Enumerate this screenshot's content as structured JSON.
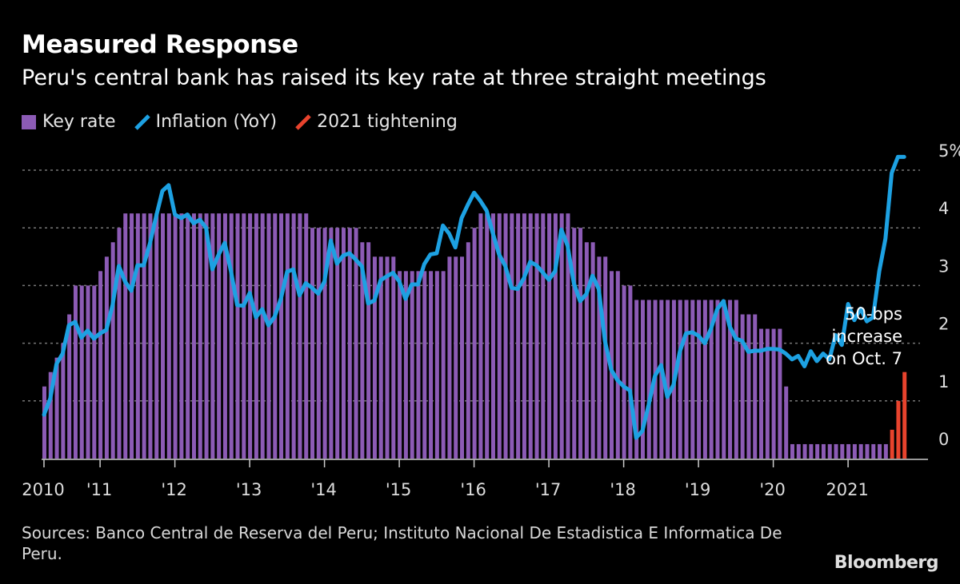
{
  "title": "Measured Response",
  "subtitle": "Peru's central bank has raised its key rate at three straight meetings",
  "legend": [
    {
      "label": "Key rate",
      "color": "#8c5bb5",
      "kind": "bar"
    },
    {
      "label": "Inflation (YoY)",
      "color": "#1da1e2",
      "kind": "line"
    },
    {
      "label": "2021 tightening",
      "color": "#e8432d",
      "kind": "bar"
    }
  ],
  "sources": "Sources: Banco Central de Reserva del Peru; Instituto Nacional De Estadistica E Informatica De Peru.",
  "logo": "Bloomberg",
  "chart_data": {
    "type": "bar+line",
    "frequency": "monthly",
    "x_start": "2010-04",
    "ylim": [
      0,
      5.5
    ],
    "y_ticks": [
      0,
      1,
      2,
      3,
      4,
      5
    ],
    "y_tick_labels": [
      "0",
      "1",
      "2",
      "3",
      "4",
      "5%"
    ],
    "x_ticks": [
      2010,
      2011,
      2012,
      2013,
      2014,
      2015,
      2016,
      2017,
      2018,
      2019,
      2020,
      2021
    ],
    "x_tick_labels": [
      "2010",
      "'11",
      "'12",
      "'13",
      "'14",
      "'15",
      "'16",
      "'17",
      "'18",
      "'19",
      "'20",
      "2021"
    ],
    "grid": "horizontal dashed",
    "legend_placement": "top-left",
    "series": [
      {
        "name": "Key rate",
        "type": "bar",
        "color": "#8c5bb5",
        "values": [
          1.25,
          1.5,
          1.75,
          2.0,
          2.5,
          3.0,
          3.0,
          3.0,
          3.0,
          3.25,
          3.5,
          3.75,
          4.0,
          4.25,
          4.25,
          4.25,
          4.25,
          4.25,
          4.25,
          4.25,
          4.25,
          4.25,
          4.25,
          4.25,
          4.25,
          4.25,
          4.25,
          4.25,
          4.25,
          4.25,
          4.25,
          4.25,
          4.25,
          4.25,
          4.25,
          4.25,
          4.25,
          4.25,
          4.25,
          4.25,
          4.25,
          4.25,
          4.25,
          4.0,
          4.0,
          4.0,
          4.0,
          4.0,
          4.0,
          4.0,
          4.0,
          3.75,
          3.75,
          3.5,
          3.5,
          3.5,
          3.5,
          3.25,
          3.25,
          3.25,
          3.25,
          3.25,
          3.25,
          3.25,
          3.25,
          3.5,
          3.5,
          3.5,
          3.75,
          4.0,
          4.25,
          4.25,
          4.25,
          4.25,
          4.25,
          4.25,
          4.25,
          4.25,
          4.25,
          4.25,
          4.25,
          4.25,
          4.25,
          4.25,
          4.25,
          4.0,
          4.0,
          3.75,
          3.75,
          3.5,
          3.5,
          3.25,
          3.25,
          3.0,
          3.0,
          2.75,
          2.75,
          2.75,
          2.75,
          2.75,
          2.75,
          2.75,
          2.75,
          2.75,
          2.75,
          2.75,
          2.75,
          2.75,
          2.75,
          2.75,
          2.75,
          2.75,
          2.5,
          2.5,
          2.5,
          2.25,
          2.25,
          2.25,
          2.25,
          1.25,
          0.25,
          0.25,
          0.25,
          0.25,
          0.25,
          0.25,
          0.25,
          0.25,
          0.25,
          0.25,
          0.25,
          0.25,
          0.25,
          0.25,
          0.25,
          0.25,
          null,
          null,
          null
        ]
      },
      {
        "name": "2021 tightening",
        "type": "bar",
        "color": "#e8432d",
        "values": [
          null,
          null,
          null,
          null,
          null,
          null,
          null,
          null,
          null,
          null,
          null,
          null,
          null,
          null,
          null,
          null,
          null,
          null,
          null,
          null,
          null,
          null,
          null,
          null,
          null,
          null,
          null,
          null,
          null,
          null,
          null,
          null,
          null,
          null,
          null,
          null,
          null,
          null,
          null,
          null,
          null,
          null,
          null,
          null,
          null,
          null,
          null,
          null,
          null,
          null,
          null,
          null,
          null,
          null,
          null,
          null,
          null,
          null,
          null,
          null,
          null,
          null,
          null,
          null,
          null,
          null,
          null,
          null,
          null,
          null,
          null,
          null,
          null,
          null,
          null,
          null,
          null,
          null,
          null,
          null,
          null,
          null,
          null,
          null,
          null,
          null,
          null,
          null,
          null,
          null,
          null,
          null,
          null,
          null,
          null,
          null,
          null,
          null,
          null,
          null,
          null,
          null,
          null,
          null,
          null,
          null,
          null,
          null,
          null,
          null,
          null,
          null,
          null,
          null,
          null,
          null,
          null,
          null,
          null,
          null,
          null,
          null,
          null,
          null,
          null,
          null,
          null,
          null,
          null,
          null,
          null,
          null,
          null,
          null,
          null,
          null,
          0.5,
          1.0,
          1.5
        ]
      },
      {
        "name": "Inflation (YoY)",
        "type": "line",
        "color": "#1da1e2",
        "values": [
          0.76,
          1.04,
          1.64,
          1.82,
          2.31,
          2.37,
          2.1,
          2.22,
          2.08,
          2.17,
          2.23,
          2.66,
          3.34,
          3.07,
          2.91,
          3.35,
          3.35,
          3.73,
          4.2,
          4.64,
          4.74,
          4.23,
          4.17,
          4.23,
          4.08,
          4.14,
          4.0,
          3.28,
          3.53,
          3.74,
          3.25,
          2.66,
          2.65,
          2.87,
          2.45,
          2.59,
          2.31,
          2.46,
          2.77,
          3.24,
          3.28,
          2.83,
          3.04,
          2.96,
          2.86,
          3.07,
          3.78,
          3.38,
          3.52,
          3.56,
          3.45,
          3.33,
          2.69,
          2.74,
          3.09,
          3.16,
          3.22,
          3.07,
          2.77,
          3.02,
          3.02,
          3.37,
          3.54,
          3.56,
          4.04,
          3.9,
          3.66,
          4.17,
          4.4,
          4.61,
          4.47,
          4.3,
          3.91,
          3.54,
          3.34,
          2.96,
          2.94,
          3.13,
          3.41,
          3.35,
          3.23,
          3.1,
          3.25,
          3.97,
          3.69,
          3.04,
          2.73,
          2.85,
          3.17,
          2.94,
          2.04,
          1.54,
          1.36,
          1.25,
          1.18,
          0.36,
          0.48,
          0.93,
          1.43,
          1.62,
          1.07,
          1.28,
          1.85,
          2.17,
          2.19,
          2.13,
          2.0,
          2.25,
          2.59,
          2.73,
          2.29,
          2.08,
          2.04,
          1.85,
          1.87,
          1.87,
          1.9,
          1.9,
          1.89,
          1.82,
          1.72,
          1.78,
          1.6,
          1.86,
          1.69,
          1.82,
          1.72,
          2.14,
          1.97,
          2.68,
          2.4,
          2.6,
          2.38,
          2.45,
          3.25,
          3.81,
          4.95,
          5.23,
          5.23
        ]
      }
    ],
    "annotations": [
      {
        "text": [
          "50-bps",
          "increase",
          "on Oct. 7"
        ]
      }
    ]
  }
}
